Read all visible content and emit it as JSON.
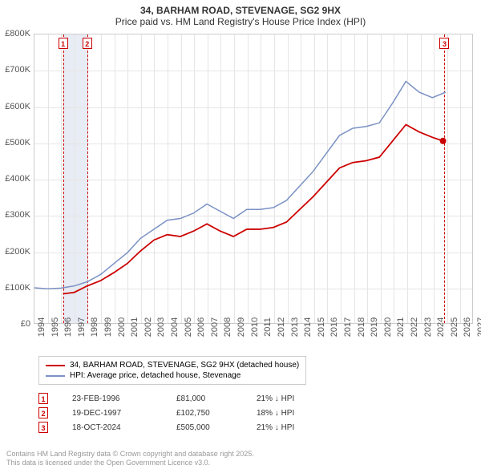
{
  "title": {
    "line1": "34, BARHAM ROAD, STEVENAGE, SG2 9HX",
    "line2": "Price paid vs. HM Land Registry's House Price Index (HPI)"
  },
  "chart": {
    "type": "line",
    "background_color": "#ffffff",
    "grid_color": "#e5e5e5",
    "border_color": "#cccccc",
    "x": {
      "min": 1994,
      "max": 2027,
      "tick_step": 1
    },
    "y": {
      "min": 0,
      "max": 800000,
      "tick_step": 100000,
      "tick_format": "£{v}K"
    },
    "highlight_band": {
      "from": 1996.15,
      "to": 1997.96,
      "color": "#e8ecf4"
    },
    "sale_lines": [
      {
        "n": 1,
        "x": 1996.15
      },
      {
        "n": 2,
        "x": 1997.96
      },
      {
        "n": 3,
        "x": 2024.8
      }
    ],
    "series": [
      {
        "key": "hpi",
        "label": "HPI: Average price, detached house, Stevenage",
        "color": "#7a91c4",
        "width": 1.5,
        "points": [
          [
            1994,
            98000
          ],
          [
            1995,
            95000
          ],
          [
            1996,
            97000
          ],
          [
            1997,
            103000
          ],
          [
            1998,
            115000
          ],
          [
            1999,
            135000
          ],
          [
            2000,
            165000
          ],
          [
            2001,
            195000
          ],
          [
            2002,
            235000
          ],
          [
            2003,
            260000
          ],
          [
            2004,
            285000
          ],
          [
            2005,
            290000
          ],
          [
            2006,
            305000
          ],
          [
            2007,
            330000
          ],
          [
            2008,
            310000
          ],
          [
            2009,
            290000
          ],
          [
            2010,
            315000
          ],
          [
            2011,
            315000
          ],
          [
            2012,
            320000
          ],
          [
            2013,
            340000
          ],
          [
            2014,
            380000
          ],
          [
            2015,
            420000
          ],
          [
            2016,
            470000
          ],
          [
            2017,
            520000
          ],
          [
            2018,
            540000
          ],
          [
            2019,
            545000
          ],
          [
            2020,
            555000
          ],
          [
            2021,
            610000
          ],
          [
            2022,
            670000
          ],
          [
            2023,
            640000
          ],
          [
            2024,
            625000
          ],
          [
            2025,
            640000
          ]
        ]
      },
      {
        "key": "price_paid",
        "label": "34, BARHAM ROAD, STEVENAGE, SG2 9HX (detached house)",
        "color": "#cc0000",
        "width": 1.8,
        "points": [
          [
            1996.15,
            81000
          ],
          [
            1997,
            85000
          ],
          [
            1997.96,
            102750
          ],
          [
            1999,
            118000
          ],
          [
            2000,
            140000
          ],
          [
            2001,
            165000
          ],
          [
            2002,
            200000
          ],
          [
            2003,
            230000
          ],
          [
            2004,
            245000
          ],
          [
            2005,
            240000
          ],
          [
            2006,
            255000
          ],
          [
            2007,
            275000
          ],
          [
            2008,
            255000
          ],
          [
            2009,
            240000
          ],
          [
            2010,
            260000
          ],
          [
            2011,
            260000
          ],
          [
            2012,
            265000
          ],
          [
            2013,
            280000
          ],
          [
            2014,
            315000
          ],
          [
            2015,
            350000
          ],
          [
            2016,
            390000
          ],
          [
            2017,
            430000
          ],
          [
            2018,
            445000
          ],
          [
            2019,
            450000
          ],
          [
            2020,
            460000
          ],
          [
            2021,
            505000
          ],
          [
            2022,
            550000
          ],
          [
            2023,
            530000
          ],
          [
            2024,
            515000
          ],
          [
            2024.8,
            505000
          ]
        ],
        "end_marker": {
          "x": 2024.8,
          "y": 505000,
          "size": 4
        }
      }
    ]
  },
  "legend": {
    "items": [
      {
        "color": "#cc0000",
        "label": "34, BARHAM ROAD, STEVENAGE, SG2 9HX (detached house)"
      },
      {
        "color": "#7a91c4",
        "label": "HPI: Average price, detached house, Stevenage"
      }
    ]
  },
  "sales": [
    {
      "n": 1,
      "date": "23-FEB-1996",
      "price": "£81,000",
      "delta": "21% ↓ HPI"
    },
    {
      "n": 2,
      "date": "19-DEC-1997",
      "price": "£102,750",
      "delta": "18% ↓ HPI"
    },
    {
      "n": 3,
      "date": "18-OCT-2024",
      "price": "£505,000",
      "delta": "21% ↓ HPI"
    }
  ],
  "footer": {
    "line1": "Contains HM Land Registry data © Crown copyright and database right 2025.",
    "line2": "This data is licensed under the Open Government Licence v3.0."
  }
}
